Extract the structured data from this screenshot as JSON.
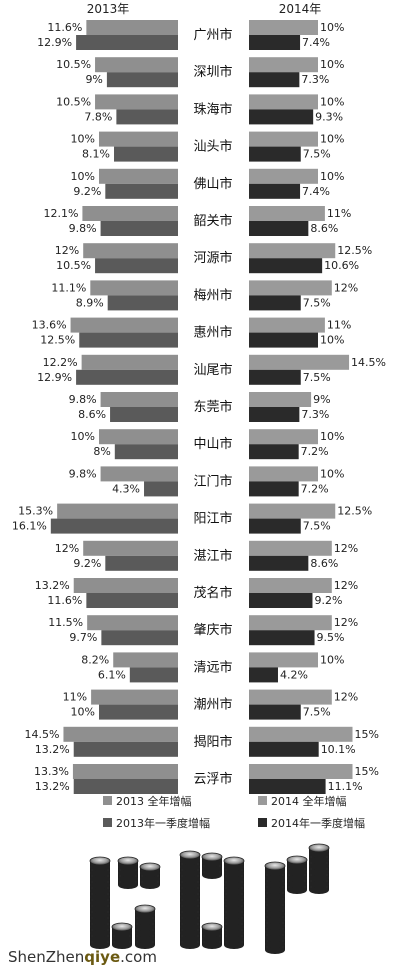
{
  "chart_data": {
    "type": "bar",
    "column_headers": [
      "2013年",
      "2014年"
    ],
    "categories": [
      "广州市",
      "深圳市",
      "珠海市",
      "汕头市",
      "佛山市",
      "韶关市",
      "河源市",
      "梅州市",
      "惠州市",
      "汕尾市",
      "东莞市",
      "中山市",
      "江门市",
      "阳江市",
      "湛江市",
      "茂名市",
      "肇庆市",
      "清远市",
      "潮州市",
      "揭阳市",
      "云浮市"
    ],
    "series": [
      {
        "name": "2013 全年增幅",
        "values": [
          11.6,
          10.5,
          10.5,
          10,
          10,
          12.1,
          12,
          11.1,
          13.6,
          12.2,
          9.8,
          10,
          9.8,
          15.3,
          12,
          13.2,
          11.5,
          8.2,
          11,
          14.5,
          13.3
        ]
      },
      {
        "name": "2013年一季度增幅",
        "values": [
          12.9,
          9,
          7.8,
          8.1,
          9.2,
          9.8,
          10.5,
          8.9,
          12.5,
          12.9,
          8.6,
          8,
          4.3,
          16.1,
          9.2,
          11.6,
          9.7,
          6.1,
          10,
          13.2,
          13.2
        ]
      },
      {
        "name": "2014 全年增幅",
        "values": [
          10,
          10,
          10,
          10,
          10,
          11,
          12.5,
          12,
          11,
          14.5,
          9,
          10,
          10,
          12.5,
          12,
          12,
          12,
          10,
          12,
          15,
          15
        ]
      },
      {
        "name": "2014年一季度增幅",
        "values": [
          7.4,
          7.3,
          9.3,
          7.5,
          7.4,
          8.6,
          10.6,
          7.5,
          10,
          7.5,
          7.3,
          7.2,
          7.2,
          7.5,
          8.6,
          9.2,
          9.5,
          4.2,
          7.5,
          10.1,
          11.1
        ]
      }
    ],
    "labels_2013_annual": [
      "11.6%",
      "10.5%",
      "10.5%",
      "10%",
      "10%",
      "12.1%",
      "12%",
      "11.1%",
      "13.6%",
      "12.2%",
      "9.8%",
      "10%",
      "9.8%",
      "15.3%",
      "12%",
      "13.2%",
      "11.5%",
      "8.2%",
      "11%",
      "14.5%",
      "13.3%"
    ],
    "labels_2013_q1": [
      "12.9%",
      "9%",
      "7.8%",
      "8.1%",
      "9.2%",
      "9.8%",
      "10.5%",
      "8.9%",
      "12.5%",
      "12.9%",
      "8.6%",
      "8%",
      "4.3%",
      "16.1%",
      "9.2%",
      "11.6%",
      "9.7%",
      "6.1%",
      "10%",
      "13.2%",
      "13.2%"
    ],
    "labels_2014_annual": [
      "10%",
      "10%",
      "10%",
      "10%",
      "10%",
      "11%",
      "12.5%",
      "12%",
      "11%",
      "14.5%",
      "9%",
      "10%",
      "10%",
      "12.5%",
      "12%",
      "12%",
      "12%",
      "10%",
      "12%",
      "15%",
      "15%"
    ],
    "labels_2014_q1": [
      "7.4%",
      "7.3%",
      "9.3%",
      "7.5%",
      "7.4%",
      "8.6%",
      "10.6%",
      "7.5%",
      "10%",
      "7.5%",
      "7.3%",
      "7.2%",
      "7.2%",
      "7.5%",
      "8.6%",
      "9.2%",
      "9.5%",
      "4.2%",
      "7.5%",
      "10.1%",
      "11.1%"
    ],
    "legend": [
      "2013 全年增幅",
      "2014 全年增幅",
      "2013年一季度增幅",
      "2014年一季度增幅"
    ],
    "legend_position": "bottom",
    "grid": false,
    "colors": {
      "y2013_annual": "#8f8f8f",
      "y2013_q1": "#5a5a5a",
      "y2014_annual": "#9a9a9a",
      "y2014_q1": "#2a2a2a"
    }
  },
  "decoration": {
    "logo_text": "GDP",
    "watermark_prefix": "ShenZhen",
    "watermark_highlight": "qiye",
    "watermark_suffix": ".com"
  }
}
